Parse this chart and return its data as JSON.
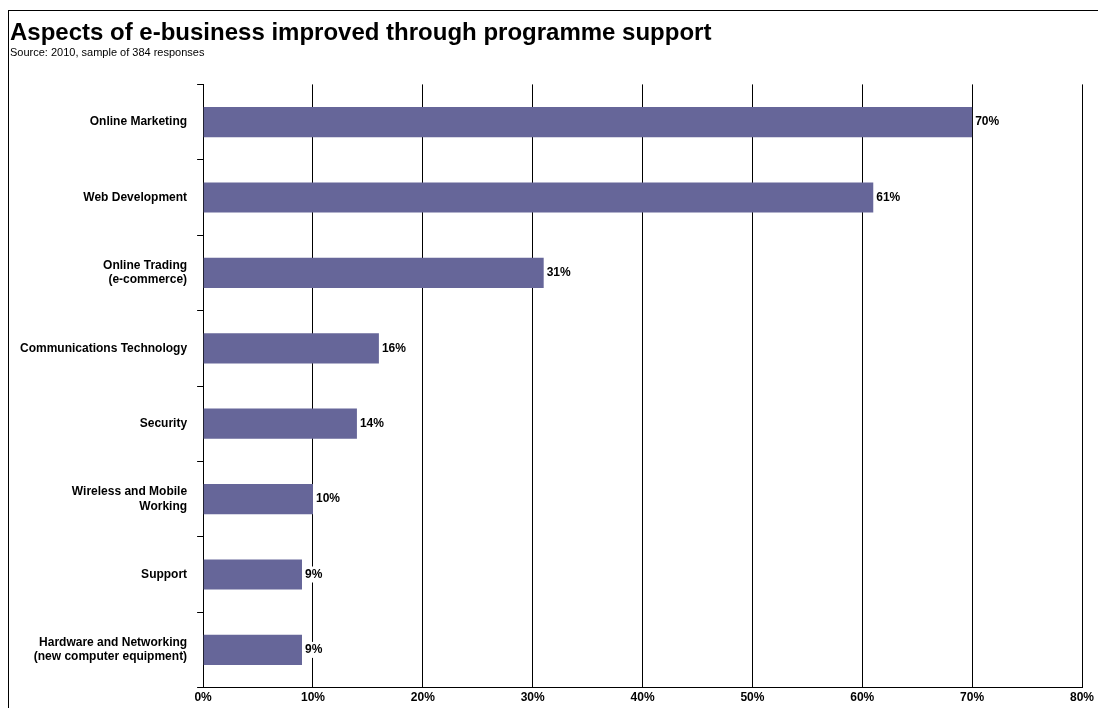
{
  "chart_data": {
    "type": "bar",
    "orientation": "horizontal",
    "title": "Aspects of e-business improved through programme support",
    "annotations": [
      "Source: 2010, sample of 384 responses"
    ],
    "categories": [
      "Online Marketing",
      "Web Development",
      "Online Trading (e-commerce)",
      "Communications Technology",
      "Security",
      "Wireless and Mobile Working",
      "Support",
      "Hardware and Networking (new computer equipment)"
    ],
    "values": [
      70,
      61,
      31,
      16,
      14,
      10,
      9,
      9
    ],
    "value_labels": [
      "70%",
      "61%",
      "31%",
      "16%",
      "14%",
      "10%",
      "9%",
      "9%"
    ],
    "color": "#666699",
    "xlim": [
      0,
      80
    ],
    "xticks": [
      {
        "value": 0,
        "label": "0%"
      },
      {
        "value": 10,
        "label": "10%"
      },
      {
        "value": 20,
        "label": "20%"
      },
      {
        "value": 30,
        "label": "30%"
      },
      {
        "value": 40,
        "label": "40%"
      },
      {
        "value": 50,
        "label": "50%"
      },
      {
        "value": 60,
        "label": "60%"
      },
      {
        "value": 70,
        "label": "70%"
      },
      {
        "value": 80,
        "label": "80%"
      }
    ],
    "grid": "x",
    "legend": false
  }
}
